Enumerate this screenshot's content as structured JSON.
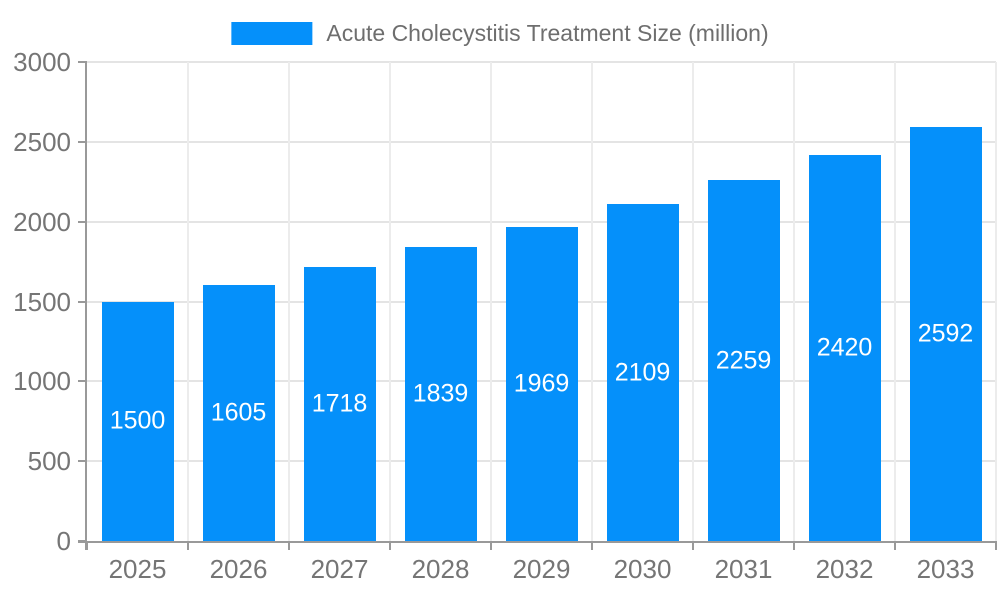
{
  "chart_data": {
    "type": "bar",
    "title": "Acute Cholecystitis Treatment Size (million)",
    "categories": [
      "2025",
      "2026",
      "2027",
      "2028",
      "2029",
      "2030",
      "2031",
      "2032",
      "2033"
    ],
    "series": [
      {
        "name": "Acute Cholecystitis Treatment Size (million)",
        "values": [
          1500,
          1605,
          1718,
          1839,
          1969,
          2109,
          2259,
          2420,
          2592
        ]
      }
    ],
    "xlabel": "",
    "ylabel": "",
    "ylim": [
      0,
      3000
    ],
    "yticks": [
      0,
      500,
      1000,
      1500,
      2000,
      2500,
      3000
    ],
    "grid": true,
    "legend_position": "top-center",
    "bar_labels_shown": true,
    "bar_label_position": "inside-center"
  },
  "colors": {
    "bar": "#0590fa",
    "grid_line": "#e4e4e4",
    "grid_line_vertical": "#ececec",
    "axis_line": "#999999",
    "axis_text": "#757575",
    "legend_text": "#6e6e6e",
    "bar_label_text": "#ffffff",
    "background": "#ffffff"
  }
}
